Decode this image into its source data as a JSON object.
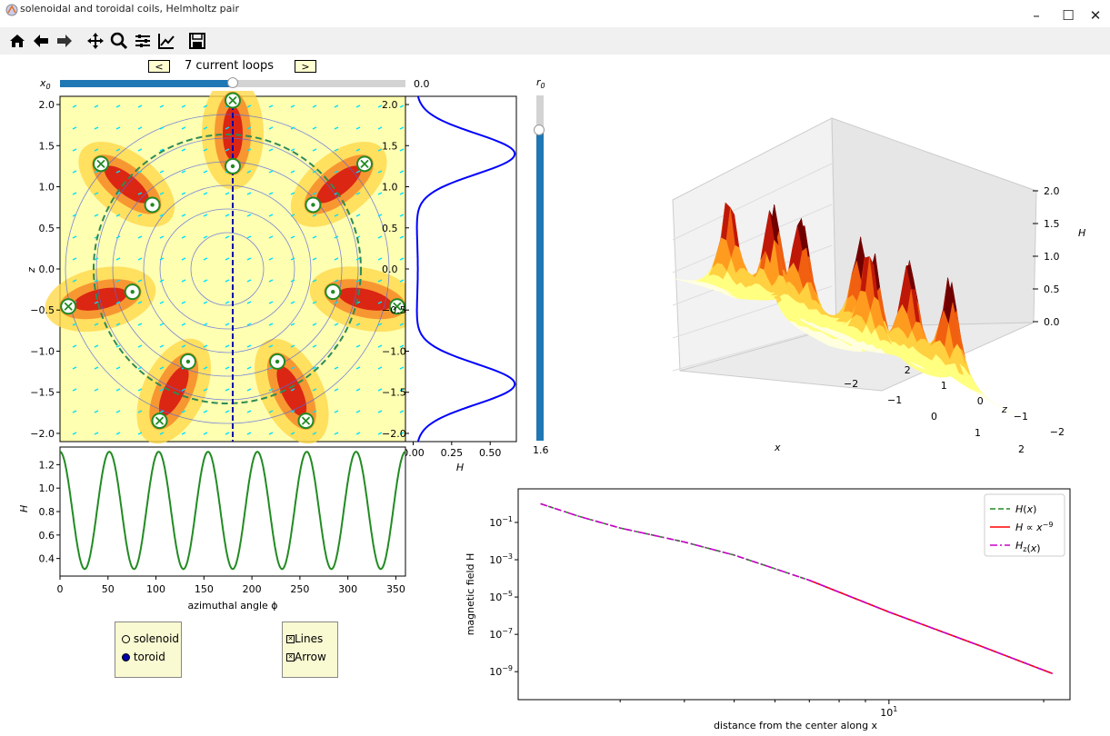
{
  "window": {
    "title": "solenoidal and toroidal coils, Helmholtz pair",
    "minimize": "–",
    "maximize": "☐",
    "close": "✕"
  },
  "toolbar": {
    "home_icon": "home-icon",
    "back_icon": "back-arrow-icon",
    "forward_icon": "forward-arrow-icon",
    "pan_icon": "pan-icon",
    "zoom_icon": "zoom-icon",
    "configure_icon": "configure-subplots-icon",
    "edit_icon": "edit-axis-icon",
    "save_icon": "save-icon"
  },
  "loops": {
    "prev_label": "<",
    "next_label": ">",
    "label": "7 current loops"
  },
  "x0_slider": {
    "label": "x",
    "label_sub": "0",
    "value_text": "0.0",
    "fraction": 0.5
  },
  "r0_slider": {
    "label": "r",
    "label_sub": "0",
    "value_text": "1.6",
    "fraction": 0.9
  },
  "colors": {
    "slider_fill": "#1f77b4",
    "field_bg": "#ffffb2",
    "green": "#228b22",
    "blue": "#0000ff",
    "magenta": "#cc00cc",
    "red": "#ff0000"
  },
  "field_axes": {
    "ylabel": "z",
    "yticks": [
      "2.0",
      "1.5",
      "1.0",
      "0.5",
      "0.0",
      "−0.5",
      "−1.0",
      "−1.5",
      "−2.0"
    ]
  },
  "profile_axes": {
    "xlabel": "H",
    "xticks": [
      "0.00",
      "0.25",
      "0.50"
    ],
    "yticks": [
      "2.0",
      "1.5",
      "1.0",
      "0.5",
      "0.0",
      "−0.5",
      "−1.0",
      "−1.5",
      "−2.0"
    ]
  },
  "surface_axes": {
    "xlabel": "x",
    "ylabel": "z",
    "zlabel": "H",
    "xticks": [
      "−2",
      "−1",
      "0",
      "1",
      "2"
    ],
    "yticks": [
      "2",
      "1",
      "0",
      "−1",
      "−2"
    ],
    "zticks": [
      "2.0",
      "1.5",
      "1.0",
      "0.5",
      "0.0"
    ]
  },
  "radio": {
    "opt1": "solenoid",
    "opt2": "toroid",
    "selected": "toroid"
  },
  "checks": {
    "opt1": "Lines",
    "opt2": "Arrow",
    "opt1_checked": true,
    "opt2_checked": true
  },
  "chart_data": [
    {
      "type": "line",
      "xlabel": "azimuthal angle ϕ",
      "ylabel": "H",
      "xlim": [
        0,
        360
      ],
      "ylim": [
        0.25,
        1.35
      ],
      "xticks": [
        "0",
        "50",
        "100",
        "150",
        "200",
        "250",
        "300",
        "350"
      ],
      "yticks": [
        "1.2",
        "1.0",
        "0.8",
        "0.6",
        "0.4"
      ],
      "series": [
        {
          "color": "#228b22",
          "periods": 7,
          "min": 0.31,
          "max": 1.31,
          "phase_deg": 0
        }
      ]
    },
    {
      "type": "line",
      "xlabel": "distance from the center along x",
      "ylabel": "magnetic field H",
      "xscale": "log",
      "yscale": "log",
      "xtick_label": "10",
      "xtick_exp": "1",
      "yticks": [
        {
          "base": "10",
          "exp": "−1"
        },
        {
          "base": "10",
          "exp": "−3"
        },
        {
          "base": "10",
          "exp": "−5"
        },
        {
          "base": "10",
          "exp": "−7"
        },
        {
          "base": "10",
          "exp": "−9"
        }
      ],
      "ylim_exp": [
        -10.5,
        0.8
      ],
      "series": [
        {
          "legend": "H(x)",
          "color": "#228b22",
          "style": "dashed",
          "x": [
            2.1,
            2.5,
            3,
            4,
            5,
            7,
            10,
            15,
            20.8
          ],
          "y_exp": [
            0.0,
            -0.68,
            -1.3,
            -2.05,
            -2.75,
            -4.1,
            -5.8,
            -7.6,
            -9.1
          ]
        },
        {
          "legend": "H ∝ x⁻⁹",
          "color": "#ff0000",
          "style": "solid",
          "x": [
            7,
            10,
            15,
            20.8
          ],
          "y_exp": [
            -4.1,
            -5.8,
            -7.6,
            -9.1
          ]
        },
        {
          "legend": "Hz(x)",
          "color": "#cc00cc",
          "style": "dashdot",
          "x": [
            2.1,
            2.5,
            3,
            4,
            5,
            7,
            10,
            15,
            20.8
          ],
          "y_exp": [
            0.0,
            -0.68,
            -1.3,
            -2.05,
            -2.75,
            -4.1,
            -5.8,
            -7.6,
            -9.1
          ]
        }
      ],
      "legend_placement": "top-right"
    }
  ]
}
